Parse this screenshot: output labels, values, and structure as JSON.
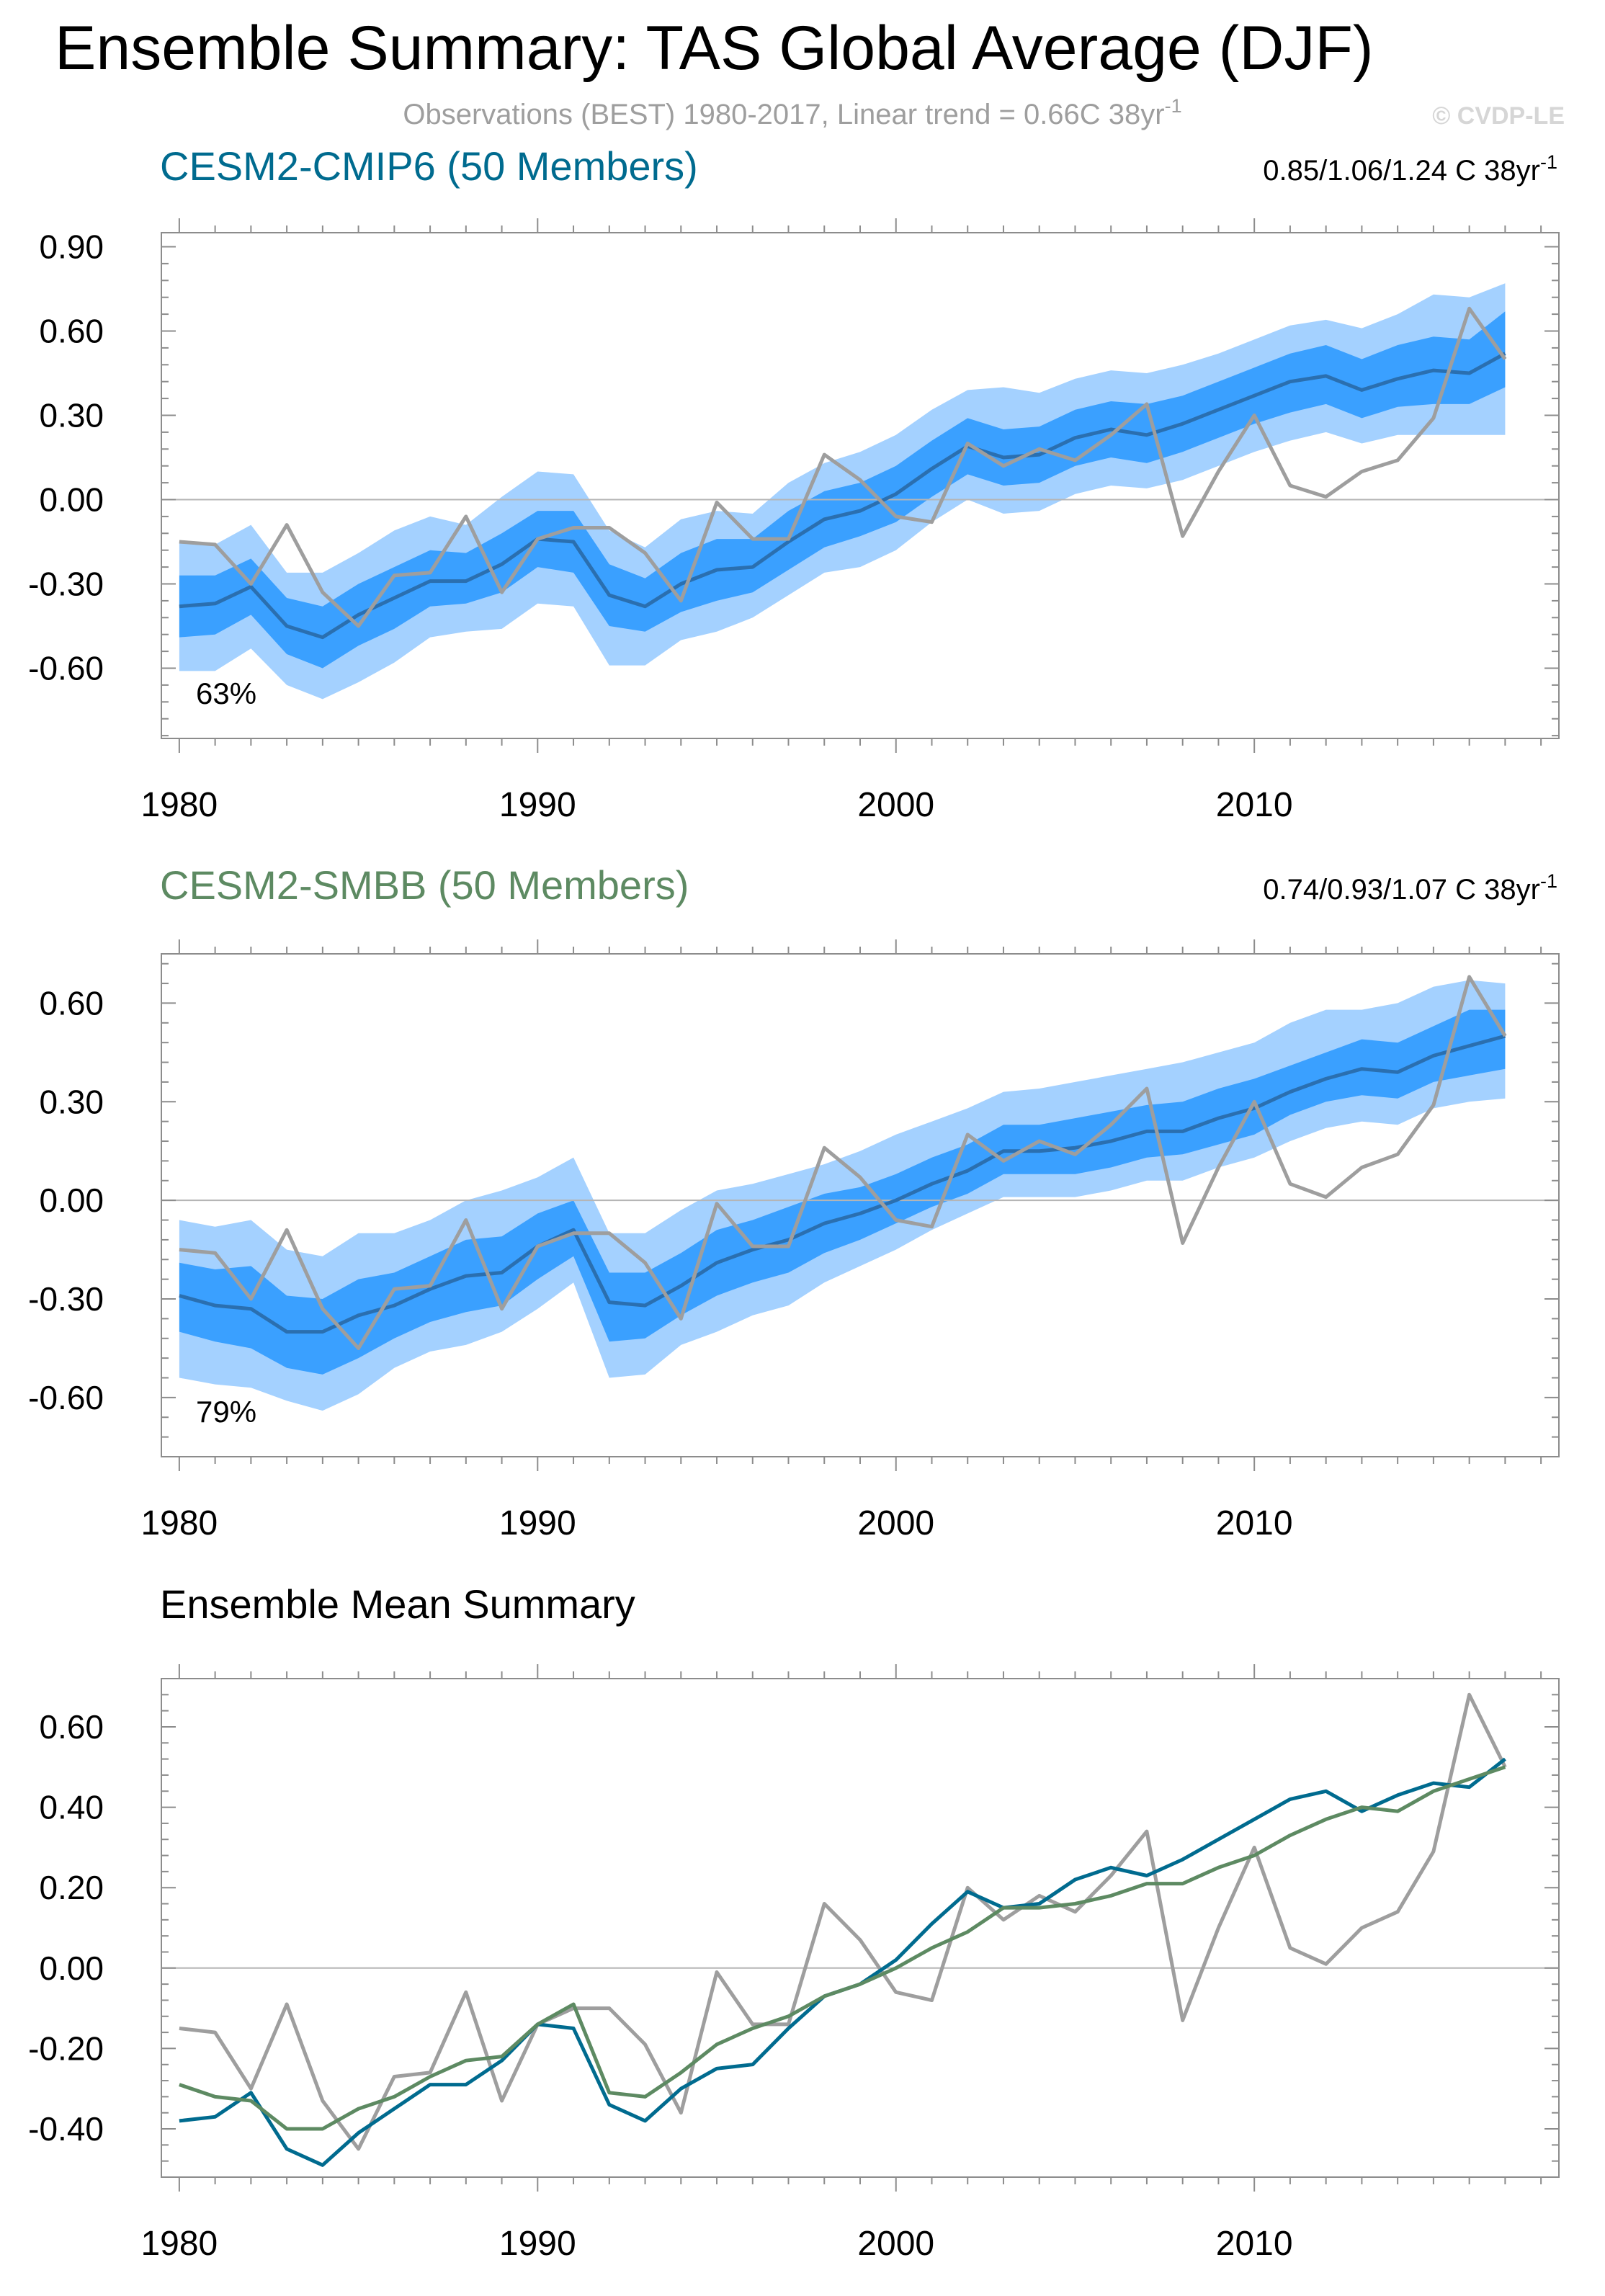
{
  "header": {
    "title": "Ensemble Summary: TAS Global Average (DJF)",
    "obs_prefix": "Observations (BEST) 1980-2017, Linear trend = 0.66C 38yr",
    "obs_sup": "-1",
    "copyright": "© CVDP-LE"
  },
  "colors": {
    "cmip6": "#006b8f",
    "smbb": "#5d8a62",
    "obs": "#9e9e9e",
    "band_outer": "#a4d1ff",
    "band_inner": "#3aa0ff",
    "mean_in_band": "#2a6fb0"
  },
  "chart_data": [
    {
      "type": "area",
      "name": "panel-cmip6",
      "title": "CESM2-CMIP6 (50 Members)",
      "trend_text": "0.85/1.06/1.24 C 38yr",
      "trend_sup": "-1",
      "percent_label": "63%",
      "xlim": [
        1979.5,
        2018.5
      ],
      "ylim": [
        -0.85,
        0.95
      ],
      "x_ticks": [
        1980,
        1990,
        2000,
        2010
      ],
      "y_ticks": [
        "0.90",
        "0.60",
        "0.30",
        "0.00",
        "-0.30",
        "-0.60"
      ],
      "years": [
        1980,
        1981,
        1982,
        1983,
        1984,
        1985,
        1986,
        1987,
        1988,
        1989,
        1990,
        1991,
        1992,
        1993,
        1994,
        1995,
        1996,
        1997,
        1998,
        1999,
        2000,
        2001,
        2002,
        2003,
        2004,
        2005,
        2006,
        2007,
        2008,
        2009,
        2010,
        2011,
        2012,
        2013,
        2014,
        2015,
        2016,
        2017
      ],
      "mean": [
        -0.38,
        -0.37,
        -0.31,
        -0.45,
        -0.49,
        -0.41,
        -0.35,
        -0.29,
        -0.29,
        -0.23,
        -0.14,
        -0.15,
        -0.34,
        -0.38,
        -0.3,
        -0.25,
        -0.24,
        -0.15,
        -0.07,
        -0.04,
        0.02,
        0.11,
        0.19,
        0.15,
        0.16,
        0.22,
        0.25,
        0.23,
        0.27,
        0.32,
        0.37,
        0.42,
        0.44,
        0.39,
        0.43,
        0.46,
        0.45,
        0.52
      ],
      "p5": [
        -0.61,
        -0.61,
        -0.53,
        -0.66,
        -0.71,
        -0.65,
        -0.58,
        -0.49,
        -0.47,
        -0.46,
        -0.37,
        -0.38,
        -0.59,
        -0.59,
        -0.5,
        -0.47,
        -0.42,
        -0.34,
        -0.26,
        -0.24,
        -0.18,
        -0.08,
        0.0,
        -0.05,
        -0.04,
        0.02,
        0.05,
        0.04,
        0.07,
        0.12,
        0.17,
        0.21,
        0.24,
        0.2,
        0.23,
        0.23,
        0.23,
        0.23
      ],
      "p25": [
        -0.49,
        -0.48,
        -0.41,
        -0.55,
        -0.6,
        -0.52,
        -0.46,
        -0.38,
        -0.37,
        -0.33,
        -0.24,
        -0.26,
        -0.45,
        -0.47,
        -0.4,
        -0.36,
        -0.33,
        -0.25,
        -0.17,
        -0.13,
        -0.08,
        0.01,
        0.09,
        0.05,
        0.06,
        0.12,
        0.15,
        0.13,
        0.17,
        0.22,
        0.27,
        0.31,
        0.34,
        0.29,
        0.33,
        0.34,
        0.34,
        0.4
      ],
      "p75": [
        -0.27,
        -0.27,
        -0.21,
        -0.35,
        -0.38,
        -0.3,
        -0.24,
        -0.18,
        -0.19,
        -0.12,
        -0.04,
        -0.04,
        -0.23,
        -0.28,
        -0.19,
        -0.14,
        -0.14,
        -0.04,
        0.03,
        0.06,
        0.12,
        0.21,
        0.29,
        0.25,
        0.26,
        0.32,
        0.35,
        0.34,
        0.37,
        0.42,
        0.47,
        0.52,
        0.55,
        0.5,
        0.55,
        0.58,
        0.57,
        0.67
      ],
      "p95": [
        -0.15,
        -0.16,
        -0.09,
        -0.26,
        -0.26,
        -0.19,
        -0.11,
        -0.06,
        -0.09,
        0.01,
        0.1,
        0.09,
        -0.11,
        -0.17,
        -0.07,
        -0.04,
        -0.05,
        0.06,
        0.13,
        0.17,
        0.23,
        0.32,
        0.39,
        0.4,
        0.38,
        0.43,
        0.46,
        0.45,
        0.48,
        0.52,
        0.57,
        0.62,
        0.64,
        0.61,
        0.66,
        0.73,
        0.72,
        0.77
      ],
      "obs": [
        -0.15,
        -0.16,
        -0.3,
        -0.09,
        -0.33,
        -0.45,
        -0.27,
        -0.26,
        -0.06,
        -0.33,
        -0.14,
        -0.1,
        -0.1,
        -0.19,
        -0.36,
        -0.01,
        -0.14,
        -0.14,
        0.16,
        0.07,
        -0.06,
        -0.08,
        0.2,
        0.12,
        0.18,
        0.14,
        0.23,
        0.34,
        -0.13,
        0.1,
        0.3,
        0.05,
        0.01,
        0.1,
        0.14,
        0.29,
        0.68,
        0.5
      ]
    },
    {
      "type": "area",
      "name": "panel-smbb",
      "title": "CESM2-SMBB (50 Members)",
      "trend_text": "0.74/0.93/1.07 C 38yr",
      "trend_sup": "-1",
      "percent_label": "79%",
      "xlim": [
        1979.5,
        2018.5
      ],
      "ylim": [
        -0.78,
        0.75
      ],
      "x_ticks": [
        1980,
        1990,
        2000,
        2010
      ],
      "y_ticks": [
        "0.60",
        "0.30",
        "0.00",
        "-0.30",
        "-0.60"
      ],
      "years": [
        1980,
        1981,
        1982,
        1983,
        1984,
        1985,
        1986,
        1987,
        1988,
        1989,
        1990,
        1991,
        1992,
        1993,
        1994,
        1995,
        1996,
        1997,
        1998,
        1999,
        2000,
        2001,
        2002,
        2003,
        2004,
        2005,
        2006,
        2007,
        2008,
        2009,
        2010,
        2011,
        2012,
        2013,
        2014,
        2015,
        2016,
        2017
      ],
      "mean": [
        -0.29,
        -0.32,
        -0.33,
        -0.4,
        -0.4,
        -0.35,
        -0.32,
        -0.27,
        -0.23,
        -0.22,
        -0.14,
        -0.09,
        -0.31,
        -0.32,
        -0.26,
        -0.19,
        -0.15,
        -0.12,
        -0.07,
        -0.04,
        0.0,
        0.05,
        0.09,
        0.15,
        0.15,
        0.16,
        0.18,
        0.21,
        0.21,
        0.25,
        0.28,
        0.33,
        0.37,
        0.4,
        0.39,
        0.44,
        0.47,
        0.5
      ],
      "p5": [
        -0.54,
        -0.56,
        -0.57,
        -0.61,
        -0.64,
        -0.59,
        -0.51,
        -0.46,
        -0.44,
        -0.4,
        -0.33,
        -0.25,
        -0.54,
        -0.53,
        -0.44,
        -0.4,
        -0.35,
        -0.32,
        -0.25,
        -0.2,
        -0.15,
        -0.09,
        -0.04,
        0.01,
        0.01,
        0.01,
        0.03,
        0.06,
        0.06,
        0.1,
        0.13,
        0.18,
        0.22,
        0.24,
        0.23,
        0.28,
        0.3,
        0.31
      ],
      "p25": [
        -0.4,
        -0.43,
        -0.45,
        -0.51,
        -0.53,
        -0.48,
        -0.42,
        -0.37,
        -0.34,
        -0.32,
        -0.24,
        -0.17,
        -0.43,
        -0.42,
        -0.35,
        -0.29,
        -0.25,
        -0.22,
        -0.16,
        -0.12,
        -0.07,
        -0.02,
        0.02,
        0.08,
        0.08,
        0.08,
        0.1,
        0.13,
        0.14,
        0.17,
        0.2,
        0.26,
        0.3,
        0.32,
        0.31,
        0.36,
        0.38,
        0.4
      ],
      "p75": [
        -0.19,
        -0.21,
        -0.2,
        -0.29,
        -0.3,
        -0.24,
        -0.22,
        -0.17,
        -0.12,
        -0.11,
        -0.04,
        0.0,
        -0.22,
        -0.22,
        -0.16,
        -0.09,
        -0.06,
        -0.02,
        0.02,
        0.04,
        0.08,
        0.13,
        0.17,
        0.23,
        0.23,
        0.25,
        0.27,
        0.29,
        0.3,
        0.34,
        0.37,
        0.41,
        0.45,
        0.49,
        0.48,
        0.53,
        0.58,
        0.58
      ],
      "p95": [
        -0.06,
        -0.08,
        -0.06,
        -0.15,
        -0.17,
        -0.1,
        -0.1,
        -0.06,
        0.0,
        0.03,
        0.07,
        0.13,
        -0.1,
        -0.1,
        -0.03,
        0.03,
        0.05,
        0.08,
        0.11,
        0.15,
        0.2,
        0.24,
        0.28,
        0.33,
        0.34,
        0.36,
        0.38,
        0.4,
        0.42,
        0.45,
        0.48,
        0.54,
        0.58,
        0.58,
        0.6,
        0.65,
        0.67,
        0.66
      ],
      "obs": [
        -0.15,
        -0.16,
        -0.3,
        -0.09,
        -0.33,
        -0.45,
        -0.27,
        -0.26,
        -0.06,
        -0.33,
        -0.14,
        -0.1,
        -0.1,
        -0.19,
        -0.36,
        -0.01,
        -0.14,
        -0.14,
        0.16,
        0.07,
        -0.06,
        -0.08,
        0.2,
        0.12,
        0.18,
        0.14,
        0.23,
        0.34,
        -0.13,
        0.1,
        0.3,
        0.05,
        0.01,
        0.1,
        0.14,
        0.29,
        0.68,
        0.5
      ]
    },
    {
      "type": "line",
      "name": "panel-ensemble-mean",
      "title": "Ensemble Mean Summary",
      "xlim": [
        1979.5,
        2018.5
      ],
      "ylim": [
        -0.52,
        0.72
      ],
      "x_ticks": [
        1980,
        1990,
        2000,
        2010
      ],
      "y_ticks": [
        "0.60",
        "0.40",
        "0.20",
        "0.00",
        "-0.20",
        "-0.40"
      ],
      "years": [
        1980,
        1981,
        1982,
        1983,
        1984,
        1985,
        1986,
        1987,
        1988,
        1989,
        1990,
        1991,
        1992,
        1993,
        1994,
        1995,
        1996,
        1997,
        1998,
        1999,
        2000,
        2001,
        2002,
        2003,
        2004,
        2005,
        2006,
        2007,
        2008,
        2009,
        2010,
        2011,
        2012,
        2013,
        2014,
        2015,
        2016,
        2017
      ],
      "series": [
        {
          "name": "CESM2-CMIP6",
          "values": [
            -0.38,
            -0.37,
            -0.31,
            -0.45,
            -0.49,
            -0.41,
            -0.35,
            -0.29,
            -0.29,
            -0.23,
            -0.14,
            -0.15,
            -0.34,
            -0.38,
            -0.3,
            -0.25,
            -0.24,
            -0.15,
            -0.07,
            -0.04,
            0.02,
            0.11,
            0.19,
            0.15,
            0.16,
            0.22,
            0.25,
            0.23,
            0.27,
            0.32,
            0.37,
            0.42,
            0.44,
            0.39,
            0.43,
            0.46,
            0.45,
            0.52
          ]
        },
        {
          "name": "CESM2-SMBB",
          "values": [
            -0.29,
            -0.32,
            -0.33,
            -0.4,
            -0.4,
            -0.35,
            -0.32,
            -0.27,
            -0.23,
            -0.22,
            -0.14,
            -0.09,
            -0.31,
            -0.32,
            -0.26,
            -0.19,
            -0.15,
            -0.12,
            -0.07,
            -0.04,
            0.0,
            0.05,
            0.09,
            0.15,
            0.15,
            0.16,
            0.18,
            0.21,
            0.21,
            0.25,
            0.28,
            0.33,
            0.37,
            0.4,
            0.39,
            0.44,
            0.47,
            0.5
          ]
        },
        {
          "name": "Observations (BEST)",
          "values": [
            -0.15,
            -0.16,
            -0.3,
            -0.09,
            -0.33,
            -0.45,
            -0.27,
            -0.26,
            -0.06,
            -0.33,
            -0.14,
            -0.1,
            -0.1,
            -0.19,
            -0.36,
            -0.01,
            -0.14,
            -0.14,
            0.16,
            0.07,
            -0.06,
            -0.08,
            0.2,
            0.12,
            0.18,
            0.14,
            0.23,
            0.34,
            -0.13,
            0.1,
            0.3,
            0.05,
            0.01,
            0.1,
            0.14,
            0.29,
            0.68,
            0.5
          ]
        }
      ]
    }
  ]
}
